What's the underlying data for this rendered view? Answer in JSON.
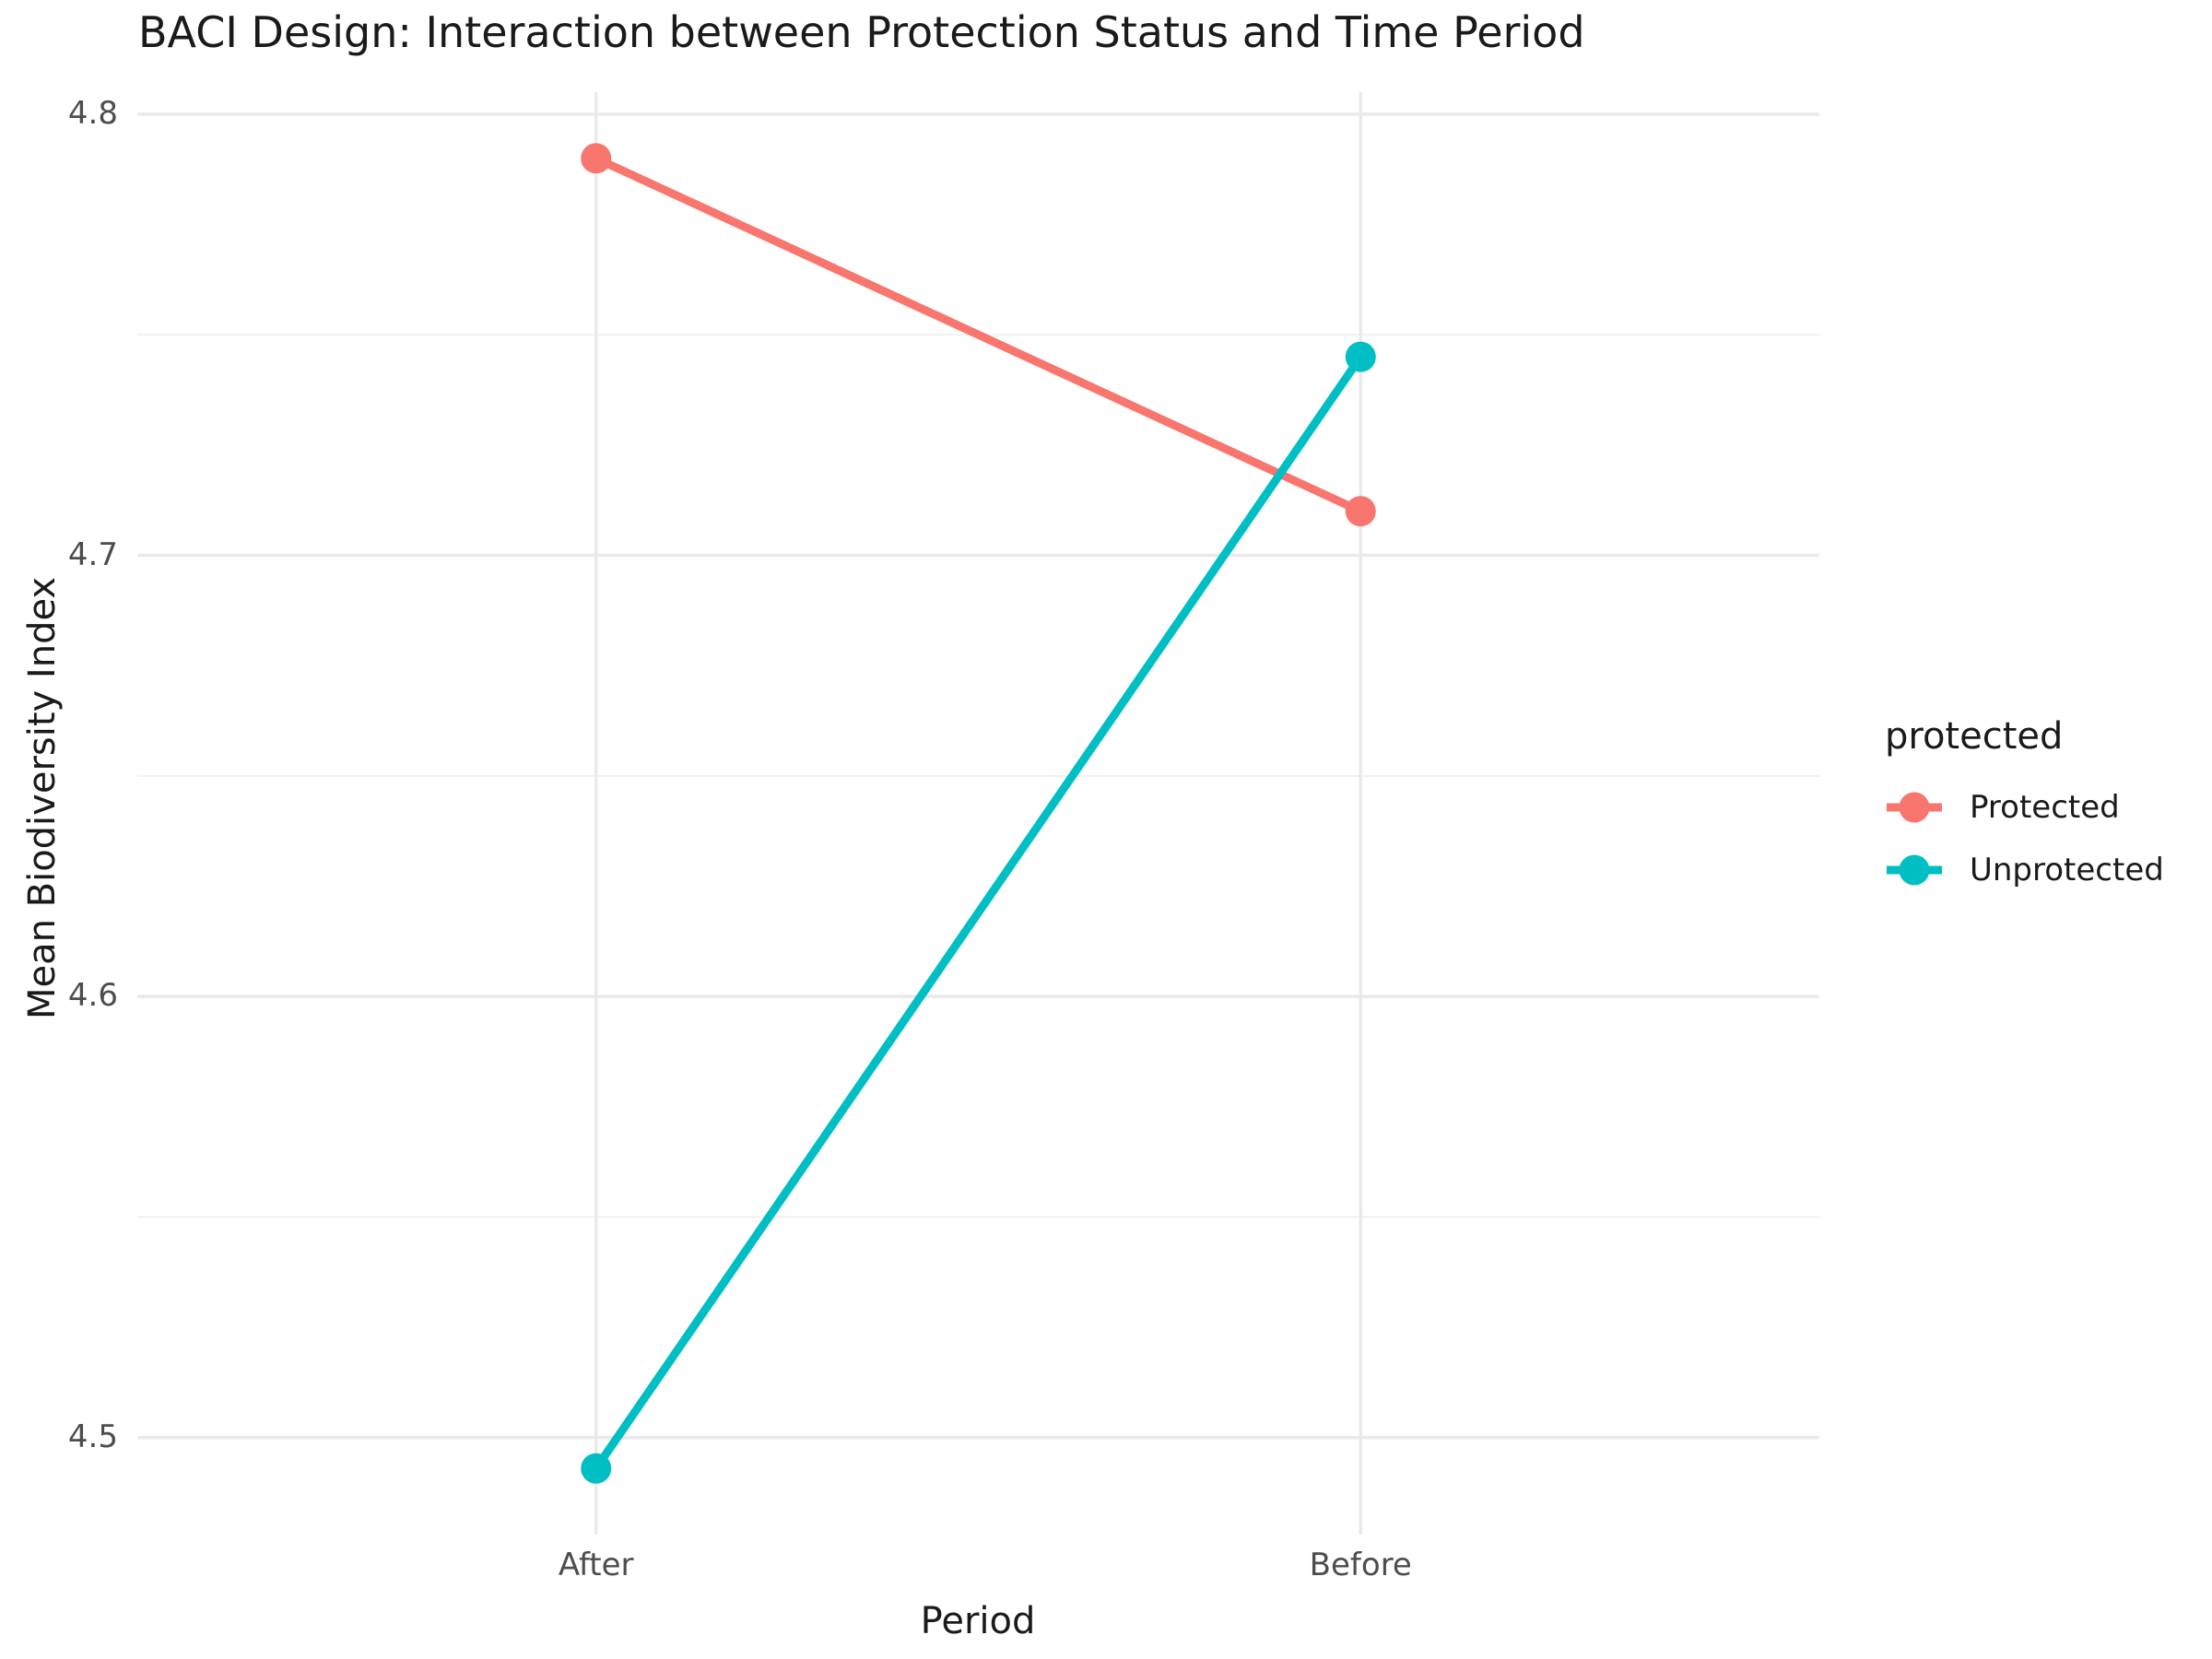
{
  "chart_data": {
    "type": "line",
    "title": "BACI Design: Interaction between Protection Status and Time Period",
    "xlabel": "Period",
    "ylabel": "Mean Biodiversity Index",
    "categories": [
      "After",
      "Before"
    ],
    "series": [
      {
        "name": "Protected",
        "color": "#F8766D",
        "values": [
          4.79,
          4.71
        ]
      },
      {
        "name": "Unprotected",
        "color": "#00BFC4",
        "values": [
          4.493,
          4.745
        ]
      }
    ],
    "y_axis": {
      "ticks": [
        {
          "value": 4.5,
          "label": "4.5"
        },
        {
          "value": 4.6,
          "label": "4.6"
        },
        {
          "value": 4.7,
          "label": "4.7"
        },
        {
          "value": 4.8,
          "label": "4.8"
        }
      ],
      "minor_ticks": [
        4.55,
        4.65,
        4.75
      ],
      "range": [
        4.478,
        4.805
      ]
    },
    "legend": {
      "title": "protected",
      "position": "right",
      "entries": [
        "Protected",
        "Unprotected"
      ]
    },
    "grid": "horizontal major+minor, vertical major at categories",
    "colors": {
      "background": "#FFFFFF",
      "grid_major": "#EAEAEA",
      "grid_minor": "#F1F1F1",
      "tick_label": "#4D4D4D",
      "text": "#1A1A1A"
    }
  }
}
